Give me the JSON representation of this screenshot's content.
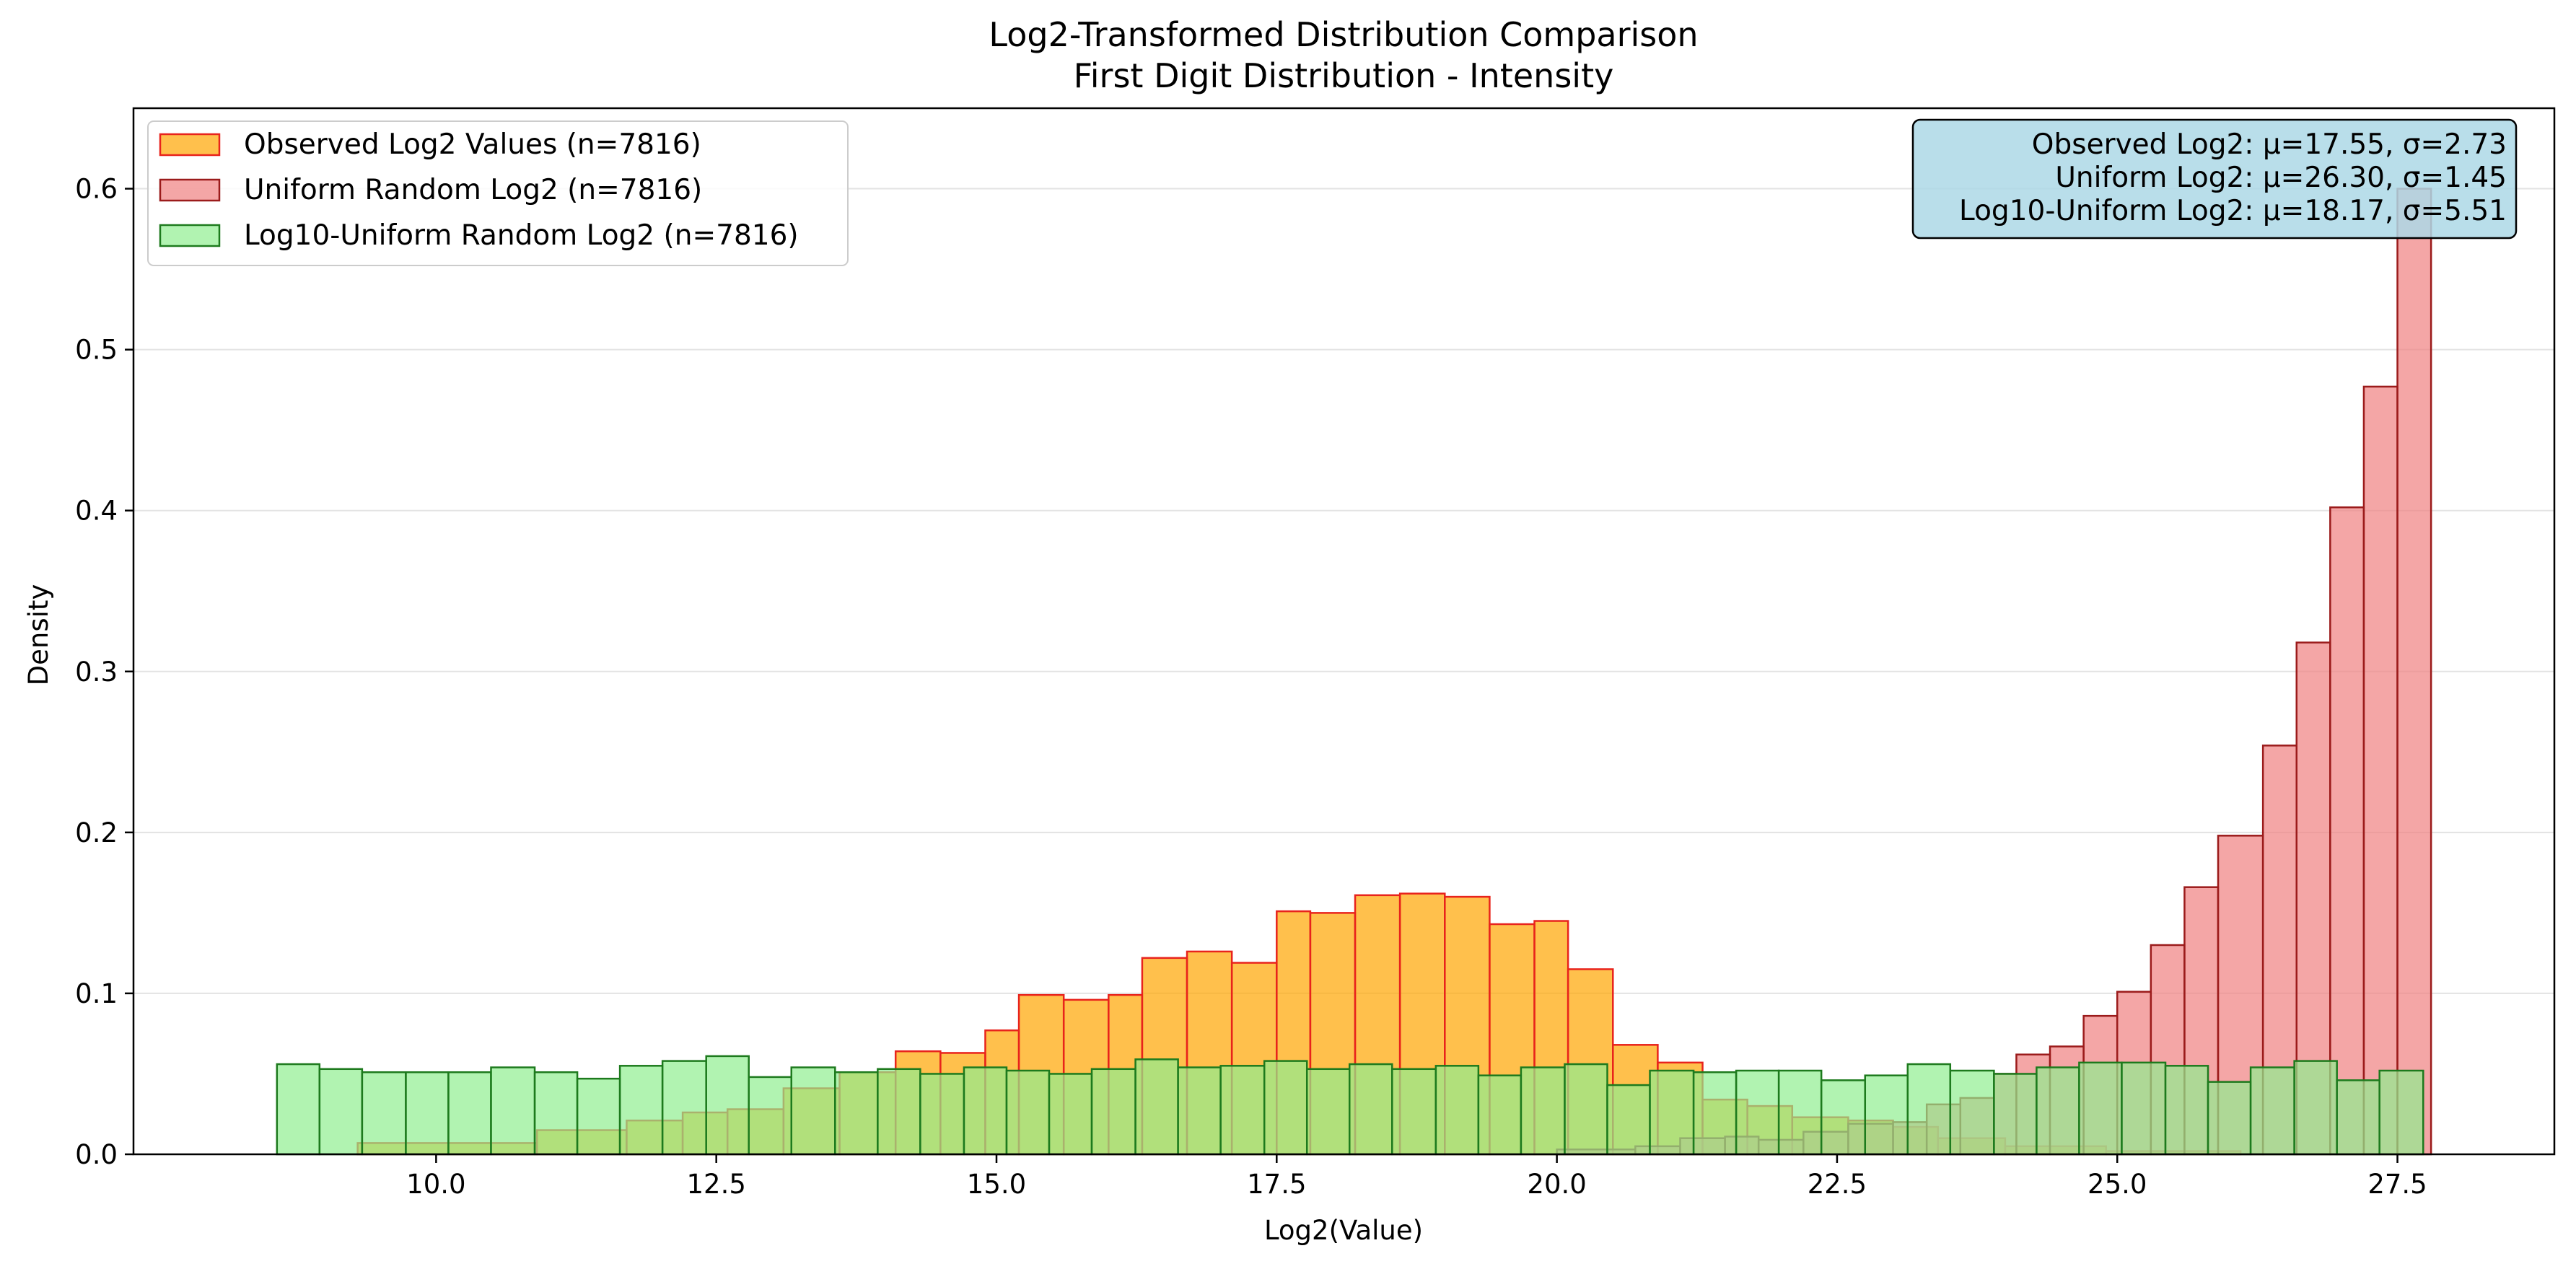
{
  "chart_data": {
    "type": "bar",
    "title": "Log2-Transformed Distribution Comparison",
    "subtitle": "First Digit Distribution - Intensity",
    "xlabel": "Log2(Value)",
    "ylabel": "Density",
    "xlim": [
      7.3,
      28.9
    ],
    "ylim": [
      0,
      0.65
    ],
    "xticks": [
      {
        "value": 10.0,
        "label": "10.0"
      },
      {
        "value": 12.5,
        "label": "12.5"
      },
      {
        "value": 15.0,
        "label": "15.0"
      },
      {
        "value": 17.5,
        "label": "17.5"
      },
      {
        "value": 20.0,
        "label": "20.0"
      },
      {
        "value": 22.5,
        "label": "22.5"
      },
      {
        "value": 25.0,
        "label": "25.0"
      },
      {
        "value": 27.5,
        "label": "27.5"
      }
    ],
    "yticks": [
      {
        "value": 0.0,
        "label": "0.0"
      },
      {
        "value": 0.1,
        "label": "0.1"
      },
      {
        "value": 0.2,
        "label": "0.2"
      },
      {
        "value": 0.3,
        "label": "0.3"
      },
      {
        "value": 0.4,
        "label": "0.4"
      },
      {
        "value": 0.5,
        "label": "0.5"
      },
      {
        "value": 0.6,
        "label": "0.6"
      }
    ],
    "grid": "horizontal",
    "legend_position": "top-left",
    "series": [
      {
        "name": "Observed Log2 Values (n=7816)",
        "fill": "#ffa500",
        "fill_opacity": 0.7,
        "edge": "#e8231c",
        "bins": [
          {
            "x0": 9.3,
            "x1": 10.9,
            "density": 0.007
          },
          {
            "x0": 10.9,
            "x1": 11.7,
            "density": 0.015
          },
          {
            "x0": 11.7,
            "x1": 12.2,
            "density": 0.021
          },
          {
            "x0": 12.2,
            "x1": 12.6,
            "density": 0.026
          },
          {
            "x0": 12.6,
            "x1": 13.1,
            "density": 0.028
          },
          {
            "x0": 13.1,
            "x1": 13.6,
            "density": 0.041
          },
          {
            "x0": 13.6,
            "x1": 14.1,
            "density": 0.051
          },
          {
            "x0": 14.1,
            "x1": 14.5,
            "density": 0.064
          },
          {
            "x0": 14.5,
            "x1": 14.9,
            "density": 0.063
          },
          {
            "x0": 14.9,
            "x1": 15.2,
            "density": 0.077
          },
          {
            "x0": 15.2,
            "x1": 15.6,
            "density": 0.099
          },
          {
            "x0": 15.6,
            "x1": 16.0,
            "density": 0.096
          },
          {
            "x0": 16.0,
            "x1": 16.3,
            "density": 0.099
          },
          {
            "x0": 16.3,
            "x1": 16.7,
            "density": 0.122
          },
          {
            "x0": 16.7,
            "x1": 17.1,
            "density": 0.126
          },
          {
            "x0": 17.1,
            "x1": 17.5,
            "density": 0.119
          },
          {
            "x0": 17.5,
            "x1": 17.8,
            "density": 0.151
          },
          {
            "x0": 17.8,
            "x1": 18.2,
            "density": 0.15
          },
          {
            "x0": 18.2,
            "x1": 18.6,
            "density": 0.161
          },
          {
            "x0": 18.6,
            "x1": 19.0,
            "density": 0.162
          },
          {
            "x0": 19.0,
            "x1": 19.4,
            "density": 0.16
          },
          {
            "x0": 19.4,
            "x1": 19.8,
            "density": 0.143
          },
          {
            "x0": 19.8,
            "x1": 20.1,
            "density": 0.145
          },
          {
            "x0": 20.1,
            "x1": 20.5,
            "density": 0.115
          },
          {
            "x0": 20.5,
            "x1": 20.9,
            "density": 0.068
          },
          {
            "x0": 20.9,
            "x1": 21.3,
            "density": 0.057
          },
          {
            "x0": 21.3,
            "x1": 21.7,
            "density": 0.034
          },
          {
            "x0": 21.7,
            "x1": 22.1,
            "density": 0.03
          },
          {
            "x0": 22.1,
            "x1": 22.6,
            "density": 0.023
          },
          {
            "x0": 22.6,
            "x1": 23.0,
            "density": 0.021
          },
          {
            "x0": 23.0,
            "x1": 23.4,
            "density": 0.017
          },
          {
            "x0": 23.4,
            "x1": 24.0,
            "density": 0.01
          },
          {
            "x0": 24.0,
            "x1": 24.9,
            "density": 0.005
          },
          {
            "x0": 24.9,
            "x1": 26.1,
            "density": 0.002
          }
        ]
      },
      {
        "name": "Uniform Random Log2 (n=7816)",
        "fill": "#f08080",
        "fill_opacity": 0.7,
        "edge": "#9b1b1b",
        "bins": [
          {
            "x0": 20.0,
            "x1": 20.7,
            "density": 0.003
          },
          {
            "x0": 20.7,
            "x1": 21.1,
            "density": 0.005
          },
          {
            "x0": 21.1,
            "x1": 21.5,
            "density": 0.01
          },
          {
            "x0": 21.5,
            "x1": 21.8,
            "density": 0.011
          },
          {
            "x0": 21.8,
            "x1": 22.2,
            "density": 0.009
          },
          {
            "x0": 22.2,
            "x1": 22.6,
            "density": 0.014
          },
          {
            "x0": 22.6,
            "x1": 23.0,
            "density": 0.019
          },
          {
            "x0": 23.0,
            "x1": 23.3,
            "density": 0.02
          },
          {
            "x0": 23.3,
            "x1": 23.6,
            "density": 0.031
          },
          {
            "x0": 23.6,
            "x1": 23.9,
            "density": 0.035
          },
          {
            "x0": 23.9,
            "x1": 24.1,
            "density": 0.05
          },
          {
            "x0": 24.1,
            "x1": 24.4,
            "density": 0.062
          },
          {
            "x0": 24.4,
            "x1": 24.7,
            "density": 0.067
          },
          {
            "x0": 24.7,
            "x1": 25.0,
            "density": 0.086
          },
          {
            "x0": 25.0,
            "x1": 25.3,
            "density": 0.101
          },
          {
            "x0": 25.3,
            "x1": 25.6,
            "density": 0.13
          },
          {
            "x0": 25.6,
            "x1": 25.9,
            "density": 0.166
          },
          {
            "x0": 25.9,
            "x1": 26.3,
            "density": 0.198
          },
          {
            "x0": 26.3,
            "x1": 26.6,
            "density": 0.254
          },
          {
            "x0": 26.6,
            "x1": 26.9,
            "density": 0.318
          },
          {
            "x0": 26.9,
            "x1": 27.2,
            "density": 0.402
          },
          {
            "x0": 27.2,
            "x1": 27.5,
            "density": 0.477
          },
          {
            "x0": 27.5,
            "x1": 27.8,
            "density": 0.6
          }
        ]
      },
      {
        "name": "Log10-Uniform Random Log2 (n=7816)",
        "fill": "#90ee90",
        "fill_opacity": 0.7,
        "edge": "#1d7a1d",
        "bins": [
          {
            "x0": 8.58,
            "x1": 8.96,
            "density": 0.056
          },
          {
            "x0": 8.96,
            "x1": 9.34,
            "density": 0.053
          },
          {
            "x0": 9.34,
            "x1": 9.73,
            "density": 0.051
          },
          {
            "x0": 9.73,
            "x1": 10.11,
            "density": 0.051
          },
          {
            "x0": 10.11,
            "x1": 10.49,
            "density": 0.051
          },
          {
            "x0": 10.49,
            "x1": 10.88,
            "density": 0.054
          },
          {
            "x0": 10.88,
            "x1": 11.26,
            "density": 0.051
          },
          {
            "x0": 11.26,
            "x1": 11.64,
            "density": 0.047
          },
          {
            "x0": 11.64,
            "x1": 12.02,
            "density": 0.055
          },
          {
            "x0": 12.02,
            "x1": 12.41,
            "density": 0.058
          },
          {
            "x0": 12.41,
            "x1": 12.79,
            "density": 0.061
          },
          {
            "x0": 12.79,
            "x1": 13.17,
            "density": 0.048
          },
          {
            "x0": 13.17,
            "x1": 13.56,
            "density": 0.054
          },
          {
            "x0": 13.56,
            "x1": 13.94,
            "density": 0.051
          },
          {
            "x0": 13.94,
            "x1": 14.32,
            "density": 0.053
          },
          {
            "x0": 14.32,
            "x1": 14.71,
            "density": 0.05
          },
          {
            "x0": 14.71,
            "x1": 15.09,
            "density": 0.054
          },
          {
            "x0": 15.09,
            "x1": 15.47,
            "density": 0.052
          },
          {
            "x0": 15.47,
            "x1": 15.85,
            "density": 0.05
          },
          {
            "x0": 15.85,
            "x1": 16.24,
            "density": 0.053
          },
          {
            "x0": 16.24,
            "x1": 16.62,
            "density": 0.059
          },
          {
            "x0": 16.62,
            "x1": 17.0,
            "density": 0.054
          },
          {
            "x0": 17.0,
            "x1": 17.39,
            "density": 0.055
          },
          {
            "x0": 17.39,
            "x1": 17.77,
            "density": 0.058
          },
          {
            "x0": 17.77,
            "x1": 18.15,
            "density": 0.053
          },
          {
            "x0": 18.15,
            "x1": 18.53,
            "density": 0.056
          },
          {
            "x0": 18.53,
            "x1": 18.92,
            "density": 0.053
          },
          {
            "x0": 18.92,
            "x1": 19.3,
            "density": 0.055
          },
          {
            "x0": 19.3,
            "x1": 19.68,
            "density": 0.049
          },
          {
            "x0": 19.68,
            "x1": 20.07,
            "density": 0.054
          },
          {
            "x0": 20.07,
            "x1": 20.45,
            "density": 0.056
          },
          {
            "x0": 20.45,
            "x1": 20.83,
            "density": 0.043
          },
          {
            "x0": 20.83,
            "x1": 21.22,
            "density": 0.052
          },
          {
            "x0": 21.22,
            "x1": 21.6,
            "density": 0.051
          },
          {
            "x0": 21.6,
            "x1": 21.98,
            "density": 0.052
          },
          {
            "x0": 21.98,
            "x1": 22.36,
            "density": 0.052
          },
          {
            "x0": 22.36,
            "x1": 22.75,
            "density": 0.046
          },
          {
            "x0": 22.75,
            "x1": 23.13,
            "density": 0.049
          },
          {
            "x0": 23.13,
            "x1": 23.51,
            "density": 0.056
          },
          {
            "x0": 23.51,
            "x1": 23.9,
            "density": 0.052
          },
          {
            "x0": 23.9,
            "x1": 24.28,
            "density": 0.05
          },
          {
            "x0": 24.28,
            "x1": 24.66,
            "density": 0.054
          },
          {
            "x0": 24.66,
            "x1": 25.04,
            "density": 0.057
          },
          {
            "x0": 25.04,
            "x1": 25.43,
            "density": 0.057
          },
          {
            "x0": 25.43,
            "x1": 25.81,
            "density": 0.055
          },
          {
            "x0": 25.81,
            "x1": 26.19,
            "density": 0.045
          },
          {
            "x0": 26.19,
            "x1": 26.58,
            "density": 0.054
          },
          {
            "x0": 26.58,
            "x1": 26.96,
            "density": 0.058
          },
          {
            "x0": 26.96,
            "x1": 27.34,
            "density": 0.046
          },
          {
            "x0": 27.34,
            "x1": 27.73,
            "density": 0.052
          }
        ]
      }
    ],
    "stats_box": {
      "lines": [
        "Observed Log2: μ=17.55, σ=2.73",
        "Uniform Log2: μ=26.30, σ=1.45",
        "Log10-Uniform Log2: μ=18.17, σ=5.51"
      ],
      "position": "top-right",
      "background": "#add8e6"
    }
  }
}
